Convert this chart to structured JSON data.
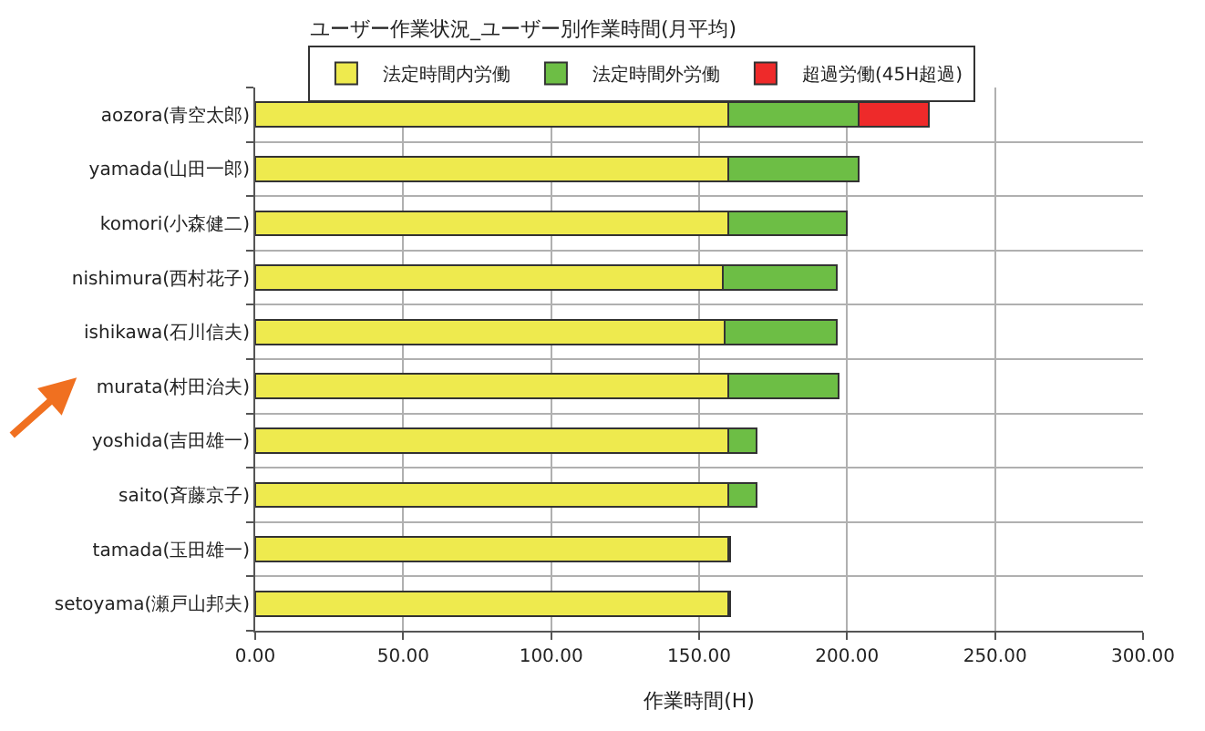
{
  "chart_data": {
    "type": "bar",
    "orientation": "horizontal",
    "stacked": true,
    "title": "ユーザー作業状況_ユーザー別作業時間(月平均)",
    "xlabel": "作業時間(H)",
    "categories": [
      "aozora(青空太郎)",
      "yamada(山田一郎)",
      "komori(小森健二)",
      "nishimura(西村花子)",
      "ishikawa(石川信夫)",
      "murata(村田治夫)",
      "yoshida(吉田雄一)",
      "saito(斉藤京子)",
      "tamada(玉田雄一)",
      "setoyama(瀬戸山邦夫)"
    ],
    "series": [
      {
        "name": "法定時間内労働",
        "color": "#eeea4e",
        "values": [
          160,
          160,
          160,
          158,
          158.5,
          160,
          160,
          160,
          160,
          160
        ]
      },
      {
        "name": "法定時間外労働",
        "color": "#6dbe45",
        "values": [
          44,
          44,
          40,
          38.5,
          38,
          37,
          9.5,
          9.5,
          0.6,
          0.6
        ]
      },
      {
        "name": "超過労働(45H超過)",
        "color": "#ee2a2a",
        "values": [
          23.5,
          null,
          null,
          null,
          null,
          null,
          null,
          null,
          null,
          null
        ]
      }
    ],
    "xlim": [
      0,
      300
    ],
    "xticks": [
      {
        "value": 0,
        "label": "0.00"
      },
      {
        "value": 50,
        "label": "50.00"
      },
      {
        "value": 100,
        "label": "100.00"
      },
      {
        "value": 150,
        "label": "150.00"
      },
      {
        "value": 200,
        "label": "200.00"
      },
      {
        "value": 250,
        "label": "250.00"
      },
      {
        "value": 300,
        "label": "300.00"
      }
    ],
    "grid": true,
    "legend": "top"
  }
}
